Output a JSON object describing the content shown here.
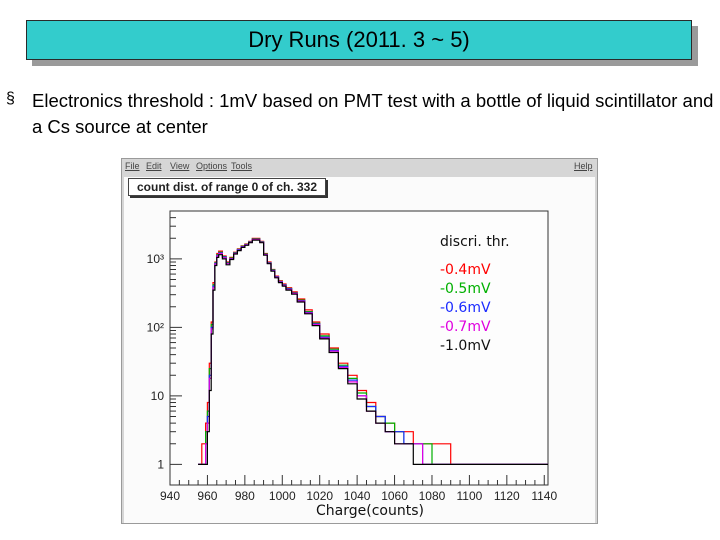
{
  "slide": {
    "title": "Dry Runs (2011. 3 ~ 5)",
    "bullet_glyph": "§",
    "bullet_text": "Electronics threshold : 1mV based on PMT test with a bottle of liquid scintillator and a Cs source at center"
  },
  "root_window": {
    "menu": [
      "File",
      "Edit",
      "View",
      "Options",
      "Tools"
    ],
    "help": "Help"
  },
  "chart_data": {
    "type": "line",
    "title": "count dist. of range 0 of ch. 332",
    "xlabel": "Charge(counts)",
    "ylabel": "",
    "log_y": true,
    "xlim": [
      940,
      1142
    ],
    "ylim": [
      0.5,
      5000
    ],
    "x_ticks": [
      "940",
      "960",
      "980",
      "1000",
      "1020",
      "1040",
      "1060",
      "1080",
      "1100",
      "1120",
      "1140"
    ],
    "y_ticks": [
      {
        "value": 1,
        "label": "1"
      },
      {
        "value": 10,
        "label": "10"
      },
      {
        "value": 100,
        "label": "10²"
      },
      {
        "value": 1000,
        "label": "10³"
      }
    ],
    "legend_title": "discri. thr.",
    "legend_placement": "top-right",
    "x": [
      955,
      957,
      959,
      960,
      961,
      962,
      963,
      964,
      965,
      966,
      968,
      970,
      972,
      974,
      976,
      978,
      980,
      982,
      984,
      986,
      988,
      990,
      992,
      994,
      996,
      998,
      1000,
      1002,
      1005,
      1008,
      1012,
      1016,
      1020,
      1025,
      1030,
      1035,
      1040,
      1045,
      1050,
      1055,
      1060,
      1065,
      1070,
      1075,
      1080,
      1090,
      1100,
      1110,
      1120,
      1130,
      1140
    ],
    "series": [
      {
        "name": "-0.4mV",
        "color": "#ff0000",
        "values": [
          1,
          2,
          4,
          8,
          30,
          120,
          450,
          900,
          1200,
          1300,
          1100,
          900,
          1050,
          1250,
          1400,
          1550,
          1650,
          1800,
          2000,
          2000,
          1800,
          1200,
          900,
          700,
          560,
          480,
          430,
          380,
          330,
          260,
          180,
          120,
          80,
          50,
          30,
          20,
          12,
          8,
          5,
          4,
          3,
          3,
          2,
          2,
          2,
          1,
          1,
          1,
          1,
          1,
          1
        ]
      },
      {
        "name": "-0.5mV",
        "color": "#00b000",
        "values": [
          1,
          1,
          3,
          6,
          25,
          110,
          420,
          880,
          1150,
          1250,
          1080,
          880,
          1030,
          1230,
          1380,
          1530,
          1630,
          1780,
          1950,
          1950,
          1780,
          1180,
          880,
          690,
          550,
          470,
          420,
          370,
          320,
          250,
          170,
          115,
          75,
          48,
          28,
          18,
          11,
          7,
          5,
          4,
          3,
          2,
          2,
          2,
          1,
          1,
          1,
          1,
          1,
          1,
          1
        ]
      },
      {
        "name": "-0.6mV",
        "color": "#1a2aff",
        "values": [
          1,
          1,
          2,
          5,
          20,
          100,
          400,
          860,
          1120,
          1220,
          1060,
          860,
          1010,
          1210,
          1360,
          1510,
          1610,
          1760,
          1930,
          1930,
          1760,
          1160,
          870,
          680,
          545,
          465,
          415,
          365,
          315,
          245,
          165,
          112,
          72,
          46,
          27,
          17,
          10,
          7,
          5,
          3,
          3,
          2,
          2,
          1,
          1,
          1,
          1,
          1,
          1,
          1,
          1
        ]
      },
      {
        "name": "-0.7mV",
        "color": "#e000e0",
        "values": [
          1,
          1,
          2,
          4,
          18,
          95,
          380,
          840,
          1100,
          1200,
          1040,
          850,
          1000,
          1200,
          1340,
          1490,
          1600,
          1740,
          1910,
          1910,
          1740,
          1150,
          860,
          670,
          540,
          460,
          410,
          360,
          312,
          242,
          162,
          110,
          70,
          45,
          26,
          16,
          10,
          6,
          4,
          3,
          2,
          2,
          2,
          1,
          1,
          1,
          1,
          1,
          1,
          1,
          1
        ]
      },
      {
        "name": "-1.0mV",
        "color": "#000000",
        "values": [
          1,
          1,
          1,
          3,
          12,
          80,
          350,
          800,
          1050,
          1150,
          1000,
          820,
          980,
          1180,
          1320,
          1470,
          1580,
          1720,
          1880,
          1880,
          1720,
          1130,
          850,
          660,
          530,
          450,
          400,
          350,
          305,
          235,
          158,
          106,
          68,
          43,
          25,
          15,
          9,
          6,
          4,
          3,
          2,
          2,
          1,
          1,
          1,
          1,
          1,
          1,
          1,
          1,
          1
        ]
      }
    ]
  }
}
